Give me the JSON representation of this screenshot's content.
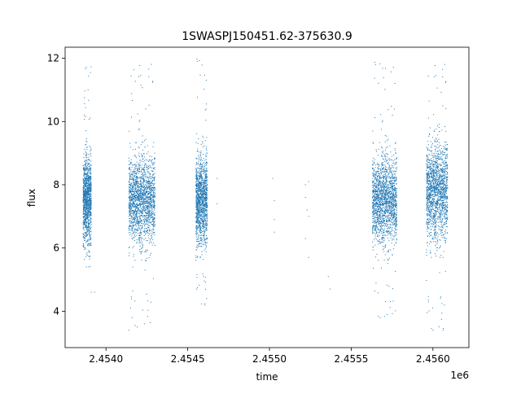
{
  "chart_data": {
    "type": "scatter",
    "title": "1SWASPJ150451.62-375630.9",
    "xlabel": "time",
    "ylabel": "flux",
    "x_offset_label": "1e6",
    "xlim": [
      2.45375,
      2.45622
    ],
    "ylim": [
      2.85,
      12.35
    ],
    "x_ticks": [
      2.454,
      2.4545,
      2.455,
      2.4555,
      2.456
    ],
    "x_tick_labels": [
      "2.4540",
      "2.4545",
      "2.4550",
      "2.4555",
      "2.4560"
    ],
    "y_ticks": [
      4,
      6,
      8,
      10,
      12
    ],
    "y_tick_labels": [
      "4",
      "6",
      "8",
      "10",
      "12"
    ],
    "grid": false,
    "legend": "none",
    "marker_color": "#1f77b4",
    "series": [
      {
        "points_summary": "dense observation seasons of flux vs time (x in units of 1e6)",
        "clusters": [
          {
            "x_range": [
              2.45386,
              2.45391
            ],
            "y_center": 7.5,
            "y_spread": 0.9,
            "y_min": 5.4,
            "y_max": 12.0
          },
          {
            "x_range": [
              2.45414,
              2.4543
            ],
            "y_center": 7.5,
            "y_spread": 0.9,
            "y_min": 3.4,
            "y_max": 12.0
          },
          {
            "x_range": [
              2.45455,
              2.45462
            ],
            "y_center": 7.5,
            "y_spread": 0.9,
            "y_min": 4.1,
            "y_max": 12.0
          },
          {
            "x_range": [
              2.45563,
              2.45578
            ],
            "y_center": 7.5,
            "y_spread": 0.9,
            "y_min": 3.7,
            "y_max": 11.9
          },
          {
            "x_range": [
              2.45596,
              2.45609
            ],
            "y_center": 7.8,
            "y_spread": 1.0,
            "y_min": 3.3,
            "y_max": 12.0
          }
        ],
        "sparse_points": [
          [
            2.45468,
            8.2
          ],
          [
            2.45468,
            7.4
          ],
          [
            2.45502,
            8.2
          ],
          [
            2.45503,
            7.5
          ],
          [
            2.45503,
            6.9
          ],
          [
            2.45503,
            6.5
          ],
          [
            2.45522,
            8.0
          ],
          [
            2.45522,
            7.6
          ],
          [
            2.45523,
            7.2
          ],
          [
            2.45524,
            8.1
          ],
          [
            2.45524,
            7.0
          ],
          [
            2.45522,
            6.3
          ],
          [
            2.45524,
            5.7
          ],
          [
            2.45536,
            5.1
          ],
          [
            2.45537,
            4.7
          ],
          [
            2.45391,
            4.6
          ],
          [
            2.45393,
            4.6
          ],
          [
            2.45415,
            4.1
          ],
          [
            2.45416,
            3.8
          ],
          [
            2.45414,
            3.4
          ]
        ]
      }
    ]
  }
}
